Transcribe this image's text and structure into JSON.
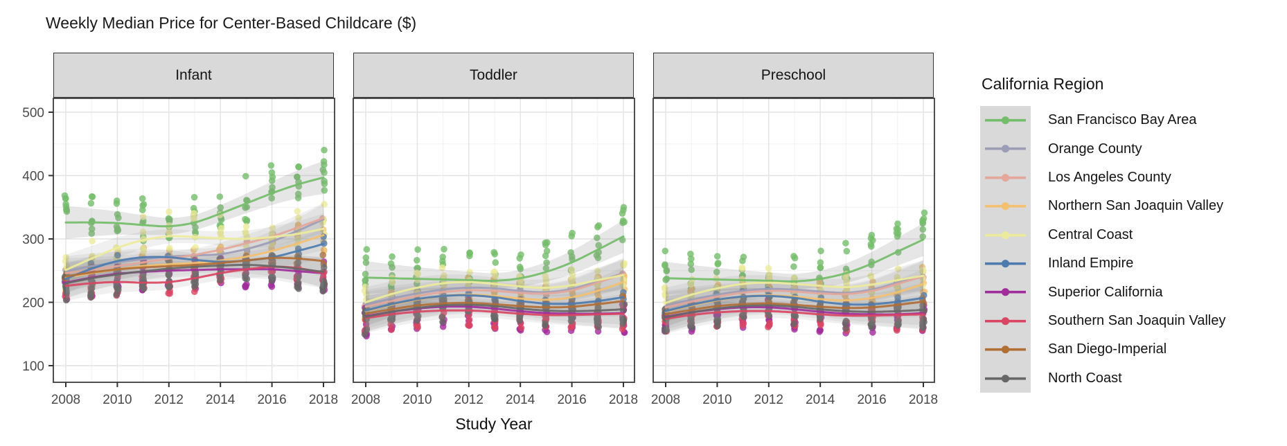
{
  "title": "Weekly Median Price for Center-Based Childcare ($)",
  "xlabel": "Study Year",
  "legend": {
    "title": "California Region",
    "items": [
      {
        "label": "San Francisco Bay Area",
        "color": "#74bd6a"
      },
      {
        "label": "Orange County",
        "color": "#9c9db7"
      },
      {
        "label": "Los Angeles County",
        "color": "#e4a79a"
      },
      {
        "label": "Northern San Joaquin Valley",
        "color": "#f3c06f"
      },
      {
        "label": "Central Coast",
        "color": "#eceb9b"
      },
      {
        "label": "Inland Empire",
        "color": "#4d7bae"
      },
      {
        "label": "Superior California",
        "color": "#a12c9c"
      },
      {
        "label": "Southern San Joaquin Valley",
        "color": "#d94562"
      },
      {
        "label": "San Diego-Imperial",
        "color": "#b16e35"
      },
      {
        "label": "North Coast",
        "color": "#676767"
      }
    ]
  },
  "chart_data": {
    "type": "scatter",
    "description": "Jittered county-level points with loess smoothed trend lines and gray confidence ribbons, faceted by age group",
    "x_ticks": [
      2008,
      2010,
      2012,
      2014,
      2016,
      2018
    ],
    "y_ticks": [
      100,
      200,
      300,
      400,
      500
    ],
    "years": [
      2008,
      2009,
      2010,
      2011,
      2012,
      2013,
      2014,
      2015,
      2016,
      2017,
      2018
    ],
    "y_domain": [
      74,
      522
    ],
    "x_domain": [
      2007.5,
      2018.9
    ],
    "grid": true,
    "legend_position": "right",
    "facets": [
      {
        "label": "Infant",
        "series": [
          {
            "name": "San Francisco Bay Area",
            "line": [
              326,
              326,
              325,
              322,
              320,
              326,
              340,
              356,
              372,
              386,
              397
            ],
            "points_per_year": 8,
            "spread": [
              30,
              45
            ],
            "band": [
              26,
              12
            ]
          },
          {
            "name": "Orange County",
            "line": [
              249,
              257,
              263,
              268,
              272,
              274,
              276,
              284,
              296,
              313,
              331
            ],
            "points_per_year": 1,
            "spread": [
              4,
              4
            ],
            "band": [
              24,
              10
            ]
          },
          {
            "name": "Los Angeles County",
            "line": [
              246,
              251,
              257,
              263,
              269,
              275,
              283,
              293,
              304,
              318,
              333
            ],
            "points_per_year": 1,
            "spread": [
              4,
              4
            ],
            "band": [
              24,
              10
            ]
          },
          {
            "name": "Northern San Joaquin Valley",
            "line": [
              239,
              246,
              252,
              257,
              260,
              262,
              266,
              272,
              281,
              293,
              306
            ],
            "points_per_year": 5,
            "spread": [
              25,
              30
            ],
            "band": [
              24,
              10
            ]
          },
          {
            "name": "Central Coast",
            "line": [
              251,
              269,
              286,
              298,
              304,
              303,
              301,
              300,
              303,
              308,
              316
            ],
            "points_per_year": 5,
            "spread": [
              20,
              40
            ],
            "band": [
              24,
              10
            ]
          },
          {
            "name": "Inland Empire",
            "line": [
              237,
              253,
              265,
              271,
              271,
              267,
              264,
              266,
              271,
              281,
              292
            ],
            "points_per_year": 2,
            "spread": [
              12,
              12
            ],
            "band": [
              24,
              10
            ]
          },
          {
            "name": "Superior California",
            "line": [
              231,
              239,
              245,
              248,
              250,
              251,
              252,
              252,
              252,
              249,
              246
            ],
            "points_per_year": 9,
            "spread": [
              30,
              20
            ],
            "band": [
              24,
              10
            ]
          },
          {
            "name": "Southern San Joaquin Valley",
            "line": [
              226,
              230,
              232,
              231,
              232,
              238,
              246,
              252,
              256,
              254,
              246
            ],
            "points_per_year": 6,
            "spread": [
              22,
              16
            ],
            "band": [
              24,
              10
            ]
          },
          {
            "name": "San Diego-Imperial",
            "line": [
              241,
              247,
              252,
              255,
              257,
              259,
              262,
              266,
              270,
              269,
              265
            ],
            "points_per_year": 2,
            "spread": [
              10,
              10
            ],
            "band": [
              24,
              10
            ]
          },
          {
            "name": "North Coast",
            "line": [
              230,
              238,
              244,
              249,
              253,
              256,
              258,
              259,
              257,
              253,
              248
            ],
            "points_per_year": 8,
            "spread": [
              32,
              18
            ],
            "band": [
              24,
              10
            ]
          }
        ]
      },
      {
        "label": "Toddler",
        "series": [
          {
            "name": "San Francisco Bay Area",
            "line": [
              239,
              238,
              237,
              236,
              235,
              234,
              238,
              248,
              263,
              283,
              304
            ],
            "points_per_year": 7,
            "spread": [
              18,
              48
            ],
            "band": [
              26,
              12
            ]
          },
          {
            "name": "Orange County",
            "line": [
              196,
              206,
              214,
              220,
              223,
              222,
              218,
              216,
              221,
              233,
              246
            ],
            "points_per_year": 1,
            "spread": [
              4,
              4
            ],
            "band": [
              24,
              10
            ]
          },
          {
            "name": "Los Angeles County",
            "line": [
              193,
              202,
              210,
              216,
              219,
              218,
              215,
              214,
              219,
              231,
              245
            ],
            "points_per_year": 1,
            "spread": [
              4,
              4
            ],
            "band": [
              24,
              10
            ]
          },
          {
            "name": "Northern San Joaquin Valley",
            "line": [
              186,
              196,
              204,
              210,
              212,
              210,
              206,
              204,
              208,
              218,
              232
            ],
            "points_per_year": 5,
            "spread": [
              20,
              28
            ],
            "band": [
              24,
              10
            ]
          },
          {
            "name": "Central Coast",
            "line": [
              200,
              213,
              223,
              230,
              232,
              229,
              225,
              223,
              227,
              235,
              243
            ],
            "points_per_year": 5,
            "spread": [
              18,
              26
            ],
            "band": [
              24,
              10
            ]
          },
          {
            "name": "Inland Empire",
            "line": [
              187,
              197,
              205,
              210,
              211,
              208,
              202,
              198,
              198,
              202,
              208
            ],
            "points_per_year": 2,
            "spread": [
              10,
              10
            ],
            "band": [
              24,
              10
            ]
          },
          {
            "name": "Superior California",
            "line": [
              178,
              185,
              190,
              193,
              193,
              190,
              186,
              183,
              182,
              182,
              183
            ],
            "points_per_year": 9,
            "spread": [
              32,
              14
            ],
            "band": [
              24,
              10
            ]
          },
          {
            "name": "Southern San Joaquin Valley",
            "line": [
              175,
              181,
              185,
              187,
              187,
              185,
              182,
              180,
              180,
              181,
              182
            ],
            "points_per_year": 6,
            "spread": [
              26,
              12
            ],
            "band": [
              24,
              10
            ]
          },
          {
            "name": "San Diego-Imperial",
            "line": [
              182,
              189,
              195,
              198,
              199,
              197,
              194,
              192,
              193,
              197,
              202
            ],
            "points_per_year": 2,
            "spread": [
              8,
              8
            ],
            "band": [
              24,
              10
            ]
          },
          {
            "name": "North Coast",
            "line": [
              177,
              185,
              191,
              195,
              196,
              194,
              190,
              187,
              186,
              187,
              189
            ],
            "points_per_year": 8,
            "spread": [
              28,
              14
            ],
            "band": [
              24,
              10
            ]
          }
        ]
      },
      {
        "label": "Preschool",
        "series": [
          {
            "name": "San Francisco Bay Area",
            "line": [
              238,
              237,
              236,
              235,
              234,
              233,
              237,
              246,
              261,
              280,
              299
            ],
            "points_per_year": 7,
            "spread": [
              18,
              48
            ],
            "band": [
              26,
              12
            ]
          },
          {
            "name": "Orange County",
            "line": [
              194,
              204,
              212,
              218,
              221,
              220,
              217,
              215,
              220,
              231,
              243
            ],
            "points_per_year": 1,
            "spread": [
              4,
              4
            ],
            "band": [
              24,
              10
            ]
          },
          {
            "name": "Los Angeles County",
            "line": [
              192,
              201,
              209,
              215,
              218,
              217,
              214,
              213,
              218,
              229,
              241
            ],
            "points_per_year": 1,
            "spread": [
              4,
              4
            ],
            "band": [
              24,
              10
            ]
          },
          {
            "name": "Northern San Joaquin Valley",
            "line": [
              185,
              195,
              203,
              209,
              211,
              209,
              205,
              203,
              207,
              216,
              229
            ],
            "points_per_year": 5,
            "spread": [
              20,
              28
            ],
            "band": [
              24,
              10
            ]
          },
          {
            "name": "Central Coast",
            "line": [
              199,
              212,
              222,
              229,
              231,
              229,
              226,
              224,
              228,
              235,
              242
            ],
            "points_per_year": 5,
            "spread": [
              18,
              26
            ],
            "band": [
              24,
              10
            ]
          },
          {
            "name": "Inland Empire",
            "line": [
              186,
              196,
              204,
              209,
              210,
              207,
              201,
              197,
              197,
              201,
              207
            ],
            "points_per_year": 2,
            "spread": [
              10,
              10
            ],
            "band": [
              24,
              10
            ]
          },
          {
            "name": "Superior California",
            "line": [
              177,
              184,
              189,
              192,
              192,
              189,
              185,
              182,
              181,
              181,
              183
            ],
            "points_per_year": 9,
            "spread": [
              32,
              14
            ],
            "band": [
              24,
              10
            ]
          },
          {
            "name": "Southern San Joaquin Valley",
            "line": [
              174,
              180,
              184,
              186,
              186,
              184,
              181,
              179,
              179,
              180,
              181
            ],
            "points_per_year": 6,
            "spread": [
              26,
              12
            ],
            "band": [
              24,
              10
            ]
          },
          {
            "name": "San Diego-Imperial",
            "line": [
              181,
              188,
              194,
              197,
              198,
              196,
              193,
              191,
              192,
              196,
              201
            ],
            "points_per_year": 2,
            "spread": [
              8,
              8
            ],
            "band": [
              24,
              10
            ]
          },
          {
            "name": "North Coast",
            "line": [
              176,
              184,
              190,
              194,
              195,
              193,
              189,
              186,
              185,
              186,
              188
            ],
            "points_per_year": 8,
            "spread": [
              28,
              14
            ],
            "band": [
              24,
              10
            ]
          }
        ]
      }
    ]
  }
}
